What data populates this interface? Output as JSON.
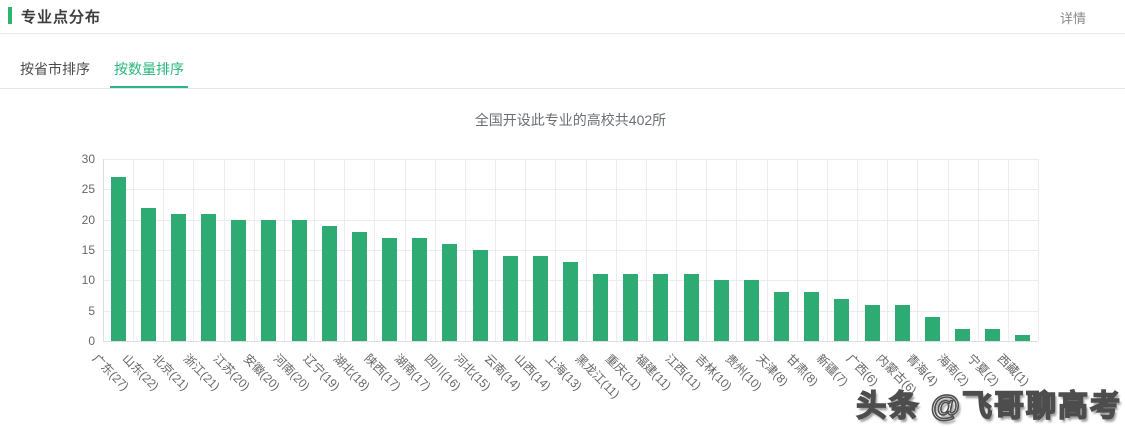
{
  "header": {
    "title": "专业点分布",
    "details_link": "详情"
  },
  "tabs": [
    {
      "label": "按省市排序",
      "active": false
    },
    {
      "label": "按数量排序",
      "active": true
    }
  ],
  "watermark": "头条 @飞哥聊高考",
  "colors": {
    "accent_green": "#2bb573",
    "tab_active": "#2ab57e",
    "bar": "#2eab72",
    "grid": "#ececec",
    "axis_text": "#666666"
  },
  "chart_data": {
    "type": "bar",
    "title": "全国开设此专业的高校共402所",
    "categories": [
      "广东",
      "山东",
      "北京",
      "浙江",
      "江苏",
      "安徽",
      "河南",
      "辽宁",
      "湖北",
      "陕西",
      "湖南",
      "四川",
      "河北",
      "云南",
      "山西",
      "上海",
      "黑龙江",
      "重庆",
      "福建",
      "江西",
      "吉林",
      "贵州",
      "天津",
      "甘肃",
      "新疆",
      "广西",
      "内蒙古",
      "青海",
      "海南",
      "宁夏",
      "西藏"
    ],
    "values": [
      27,
      22,
      21,
      21,
      20,
      20,
      20,
      19,
      18,
      17,
      17,
      16,
      15,
      14,
      14,
      13,
      11,
      11,
      11,
      11,
      10,
      10,
      8,
      8,
      7,
      6,
      6,
      4,
      2,
      2,
      1
    ],
    "x_tick_labels": [
      "广东(27)",
      "山东(22)",
      "北京(21)",
      "浙江(21)",
      "江苏(20)",
      "安徽(20)",
      "河南(20)",
      "辽宁(19)",
      "湖北(18)",
      "陕西(17)",
      "湖南(17)",
      "四川(16)",
      "河北(15)",
      "云南(14)",
      "山西(14)",
      "上海(13)",
      "黑龙江(11)",
      "重庆(11)",
      "福建(11)",
      "江西(11)",
      "吉林(10)",
      "贵州(10)",
      "天津(8)",
      "甘肃(8)",
      "新疆(7)",
      "广西(6)",
      "内蒙古(6)",
      "青海(4)",
      "海南(2)",
      "宁夏(2)",
      "西藏(1)"
    ],
    "total_label_value": "402",
    "ylim": [
      0,
      30
    ],
    "y_ticks": [
      0,
      5,
      10,
      15,
      20,
      25,
      30
    ],
    "grid": true,
    "x_label_rotation": 45,
    "legend": "none"
  }
}
